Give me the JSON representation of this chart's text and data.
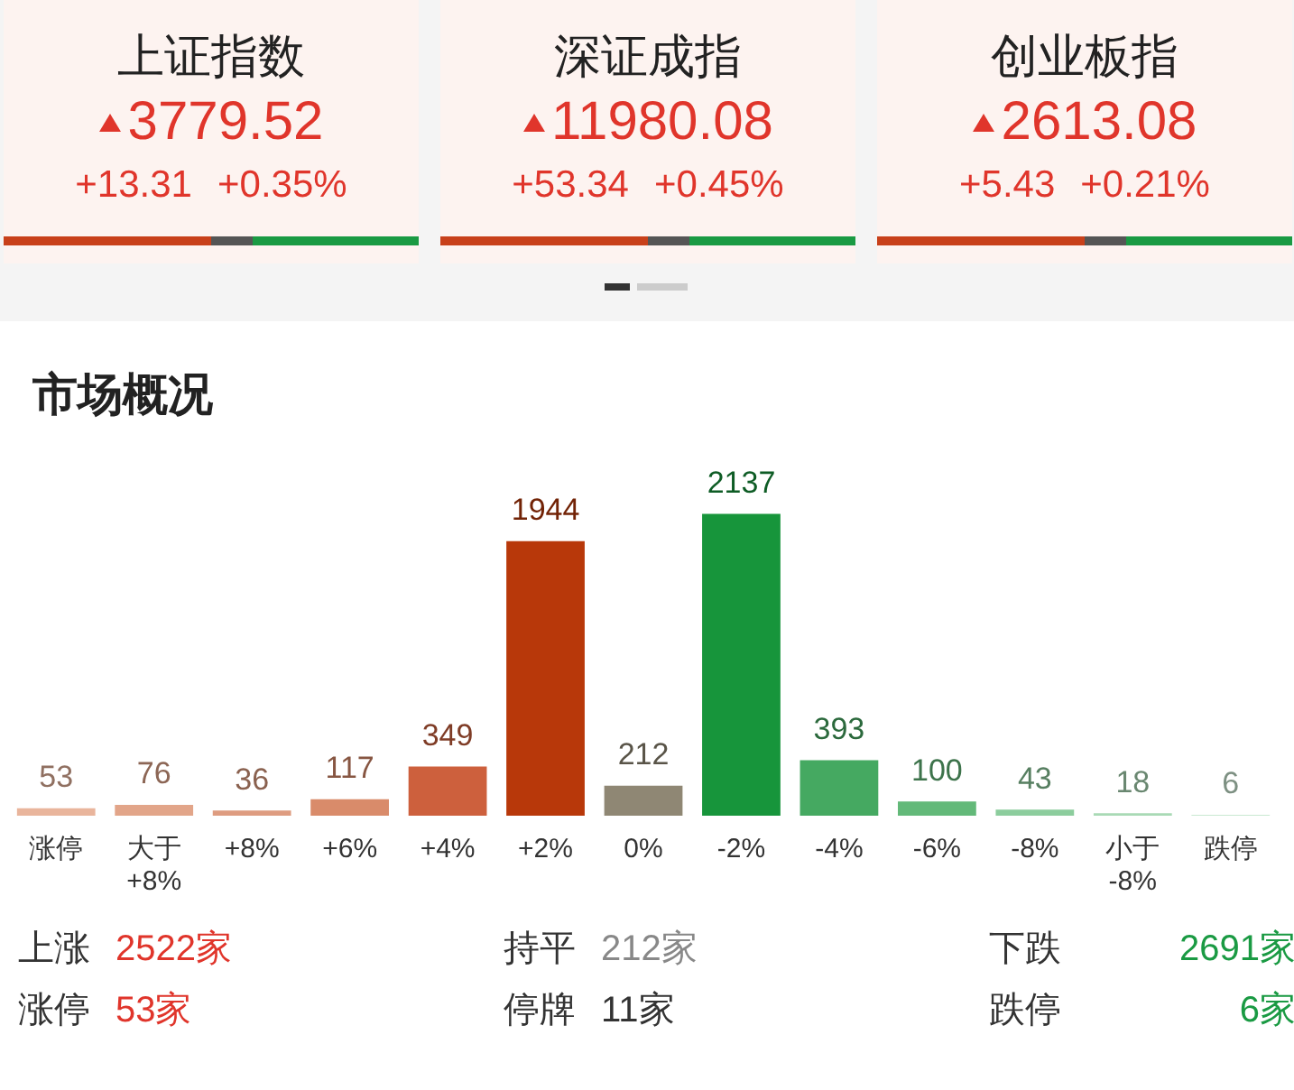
{
  "chart_data": [
    {
      "type": "other",
      "annotations": [
        "上证指数",
        "3779.52",
        "+13.31",
        "+0.35%",
        "深证成指",
        "11980.08",
        "+53.34",
        "+0.45%",
        "创业板指",
        "2613.08",
        "+5.43",
        "+0.21%"
      ]
    },
    {
      "type": "bar",
      "title": "市场概况",
      "categories": [
        "涨停",
        "大于\n+8%",
        "+8%",
        "+6%",
        "+4%",
        "+2%",
        "0%",
        "-2%",
        "-4%",
        "-6%",
        "-8%",
        "小于\n-8%",
        "跌停"
      ],
      "values": [
        53,
        76,
        36,
        117,
        349,
        1944,
        212,
        2137,
        393,
        100,
        43,
        18,
        6
      ],
      "colors": [
        "#e9b59c",
        "#e2a589",
        "#de9c80",
        "#d98b6a",
        "#cd603d",
        "#b8380a",
        "#8f8774",
        "#17953b",
        "#45a961",
        "#63b979",
        "#8ccd9d",
        "#a9dab5",
        "#c9e9d1"
      ],
      "data_labels": true,
      "grid": false,
      "legend": false,
      "annotations": [
        "上涨",
        "2522家",
        "持平",
        "212家",
        "下跌",
        "2691家",
        "涨停",
        "53家",
        "停牌",
        "11家",
        "跌停",
        "6家"
      ]
    }
  ]
}
